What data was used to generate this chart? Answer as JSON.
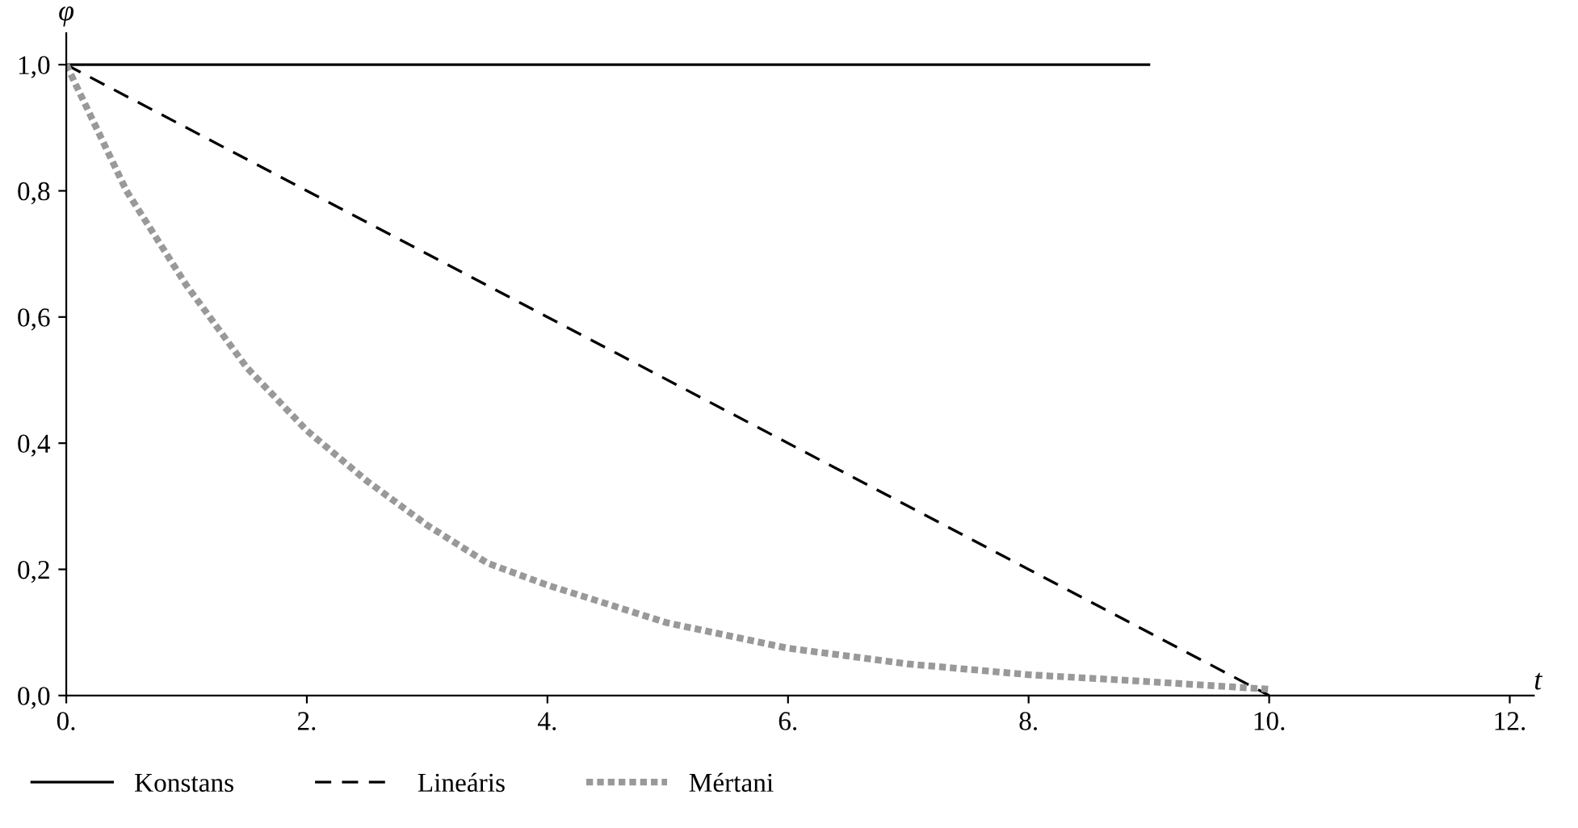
{
  "chart_data": {
    "type": "line",
    "xlabel": "t",
    "ylabel": "φ",
    "xlim": [
      0,
      12.2
    ],
    "ylim": [
      0,
      1.05
    ],
    "xticks": [
      {
        "value": 0,
        "label": "0."
      },
      {
        "value": 2,
        "label": "2."
      },
      {
        "value": 4,
        "label": "4."
      },
      {
        "value": 6,
        "label": "6."
      },
      {
        "value": 8,
        "label": "8."
      },
      {
        "value": 10,
        "label": "10."
      },
      {
        "value": 12,
        "label": "12."
      }
    ],
    "yticks": [
      {
        "value": 0,
        "label": "0,0"
      },
      {
        "value": 0.2,
        "label": "0,2"
      },
      {
        "value": 0.4,
        "label": "0,4"
      },
      {
        "value": 0.6,
        "label": "0,6"
      },
      {
        "value": 0.8,
        "label": "0,8"
      },
      {
        "value": 1,
        "label": "1,0"
      }
    ],
    "grid": false,
    "legend": "bottom",
    "marker": "none",
    "series": [
      {
        "name": "Konstans",
        "color": "#000000",
        "line_style": "solid",
        "x": [
          0,
          9
        ],
        "values": [
          1,
          1
        ]
      },
      {
        "name": "Lineáris",
        "color": "#000000",
        "line_style": "dashed",
        "x": [
          0,
          10
        ],
        "values": [
          1,
          0
        ]
      },
      {
        "name": "Mértani",
        "color": "#999999",
        "line_style": "dotted",
        "x": [
          0,
          0.5,
          1,
          1.5,
          2,
          2.5,
          3,
          3.5,
          4,
          5,
          6,
          7,
          8,
          9,
          10
        ],
        "values": [
          1,
          0.8,
          0.65,
          0.52,
          0.42,
          0.34,
          0.27,
          0.21,
          0.175,
          0.115,
          0.075,
          0.05,
          0.033,
          0.022,
          0.01
        ]
      }
    ]
  }
}
